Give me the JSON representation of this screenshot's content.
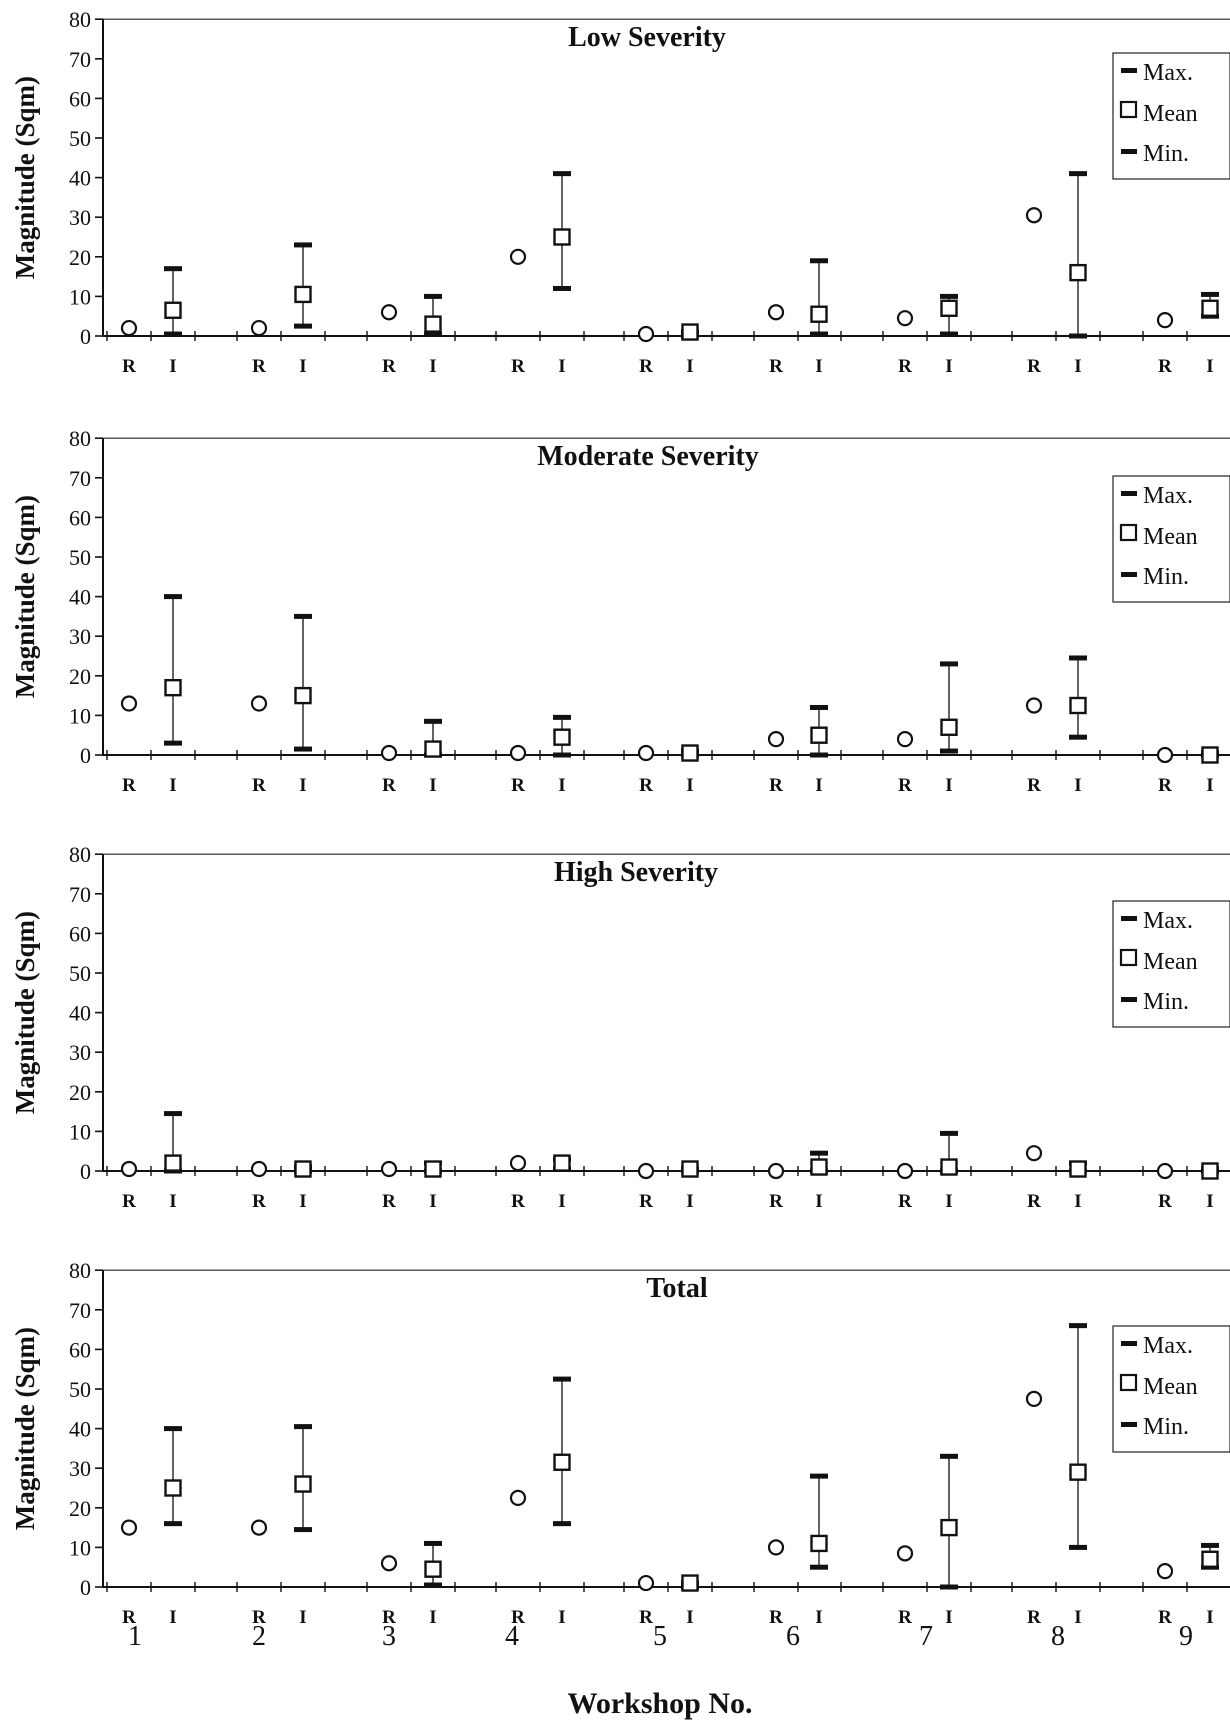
{
  "chart_data": {
    "type": "scatter",
    "xlabel": "Workshop No.",
    "workshops": [
      "1",
      "2",
      "3",
      "4",
      "5",
      "6",
      "7",
      "8",
      "9"
    ],
    "group_labels": [
      "R",
      "I"
    ],
    "legend": [
      "Max.",
      "Mean",
      "Min."
    ],
    "ylabel": "Magnitude (Sqm)",
    "ylim": [
      0,
      80
    ],
    "yticks": [
      "0",
      "10",
      "20",
      "30",
      "40",
      "50",
      "60",
      "70",
      "80"
    ],
    "panels": [
      {
        "title": "Low Severity",
        "R": [
          2,
          2,
          6,
          20,
          0.5,
          6,
          4.5,
          30.5,
          4
        ],
        "I": [
          {
            "max": 17,
            "mean": 6.5,
            "min": 0.5
          },
          {
            "max": 23,
            "mean": 10.5,
            "min": 2.5
          },
          {
            "max": 10,
            "mean": 3,
            "min": 0.5
          },
          {
            "max": 41,
            "mean": 25,
            "min": 12
          },
          {
            "max": 1,
            "mean": 1,
            "min": 0
          },
          {
            "max": 19,
            "mean": 5.5,
            "min": 0.5
          },
          {
            "max": 10,
            "mean": 7,
            "min": 0.5
          },
          {
            "max": 41,
            "mean": 16,
            "min": 0
          },
          {
            "max": 10.5,
            "mean": 7,
            "min": 5
          }
        ]
      },
      {
        "title": "Moderate Severity",
        "R": [
          13,
          13,
          0.5,
          0.5,
          0.5,
          4,
          4,
          12.5,
          0
        ],
        "I": [
          {
            "max": 40,
            "mean": 17,
            "min": 3
          },
          {
            "max": 35,
            "mean": 15,
            "min": 1.5
          },
          {
            "max": 8.5,
            "mean": 1.5,
            "min": 0
          },
          {
            "max": 9.5,
            "mean": 4.5,
            "min": 0
          },
          {
            "max": 1,
            "mean": 0.5,
            "min": 0
          },
          {
            "max": 12,
            "mean": 5,
            "min": 0
          },
          {
            "max": 23,
            "mean": 7,
            "min": 1
          },
          {
            "max": 24.5,
            "mean": 12.5,
            "min": 4.5
          },
          {
            "max": 0.5,
            "mean": 0,
            "min": 0
          }
        ]
      },
      {
        "title": "High Severity",
        "R": [
          0.5,
          0.5,
          0.5,
          2,
          0,
          0,
          0,
          4.5,
          0
        ],
        "I": [
          {
            "max": 14.5,
            "mean": 2,
            "min": 0
          },
          {
            "max": 1,
            "mean": 0.5,
            "min": 0
          },
          {
            "max": 2,
            "mean": 0.5,
            "min": 0
          },
          {
            "max": 3,
            "mean": 2,
            "min": 0.5
          },
          {
            "max": 0.5,
            "mean": 0.5,
            "min": 0
          },
          {
            "max": 4.5,
            "mean": 1,
            "min": 0
          },
          {
            "max": 9.5,
            "mean": 1,
            "min": 0
          },
          {
            "max": 2,
            "mean": 0.5,
            "min": 0
          },
          {
            "max": 0.5,
            "mean": 0,
            "min": 0
          }
        ]
      },
      {
        "title": "Total",
        "R": [
          15,
          15,
          6,
          22.5,
          1,
          10,
          8.5,
          47.5,
          4
        ],
        "I": [
          {
            "max": 40,
            "mean": 25,
            "min": 16
          },
          {
            "max": 40.5,
            "mean": 26,
            "min": 14.5
          },
          {
            "max": 11,
            "mean": 4.5,
            "min": 0.5
          },
          {
            "max": 52.5,
            "mean": 31.5,
            "min": 16
          },
          {
            "max": 1,
            "mean": 1,
            "min": 0
          },
          {
            "max": 28,
            "mean": 11,
            "min": 5
          },
          {
            "max": 33,
            "mean": 15,
            "min": 0
          },
          {
            "max": 66,
            "mean": 29,
            "min": 10
          },
          {
            "max": 10.5,
            "mean": 7,
            "min": 5
          }
        ]
      }
    ]
  }
}
